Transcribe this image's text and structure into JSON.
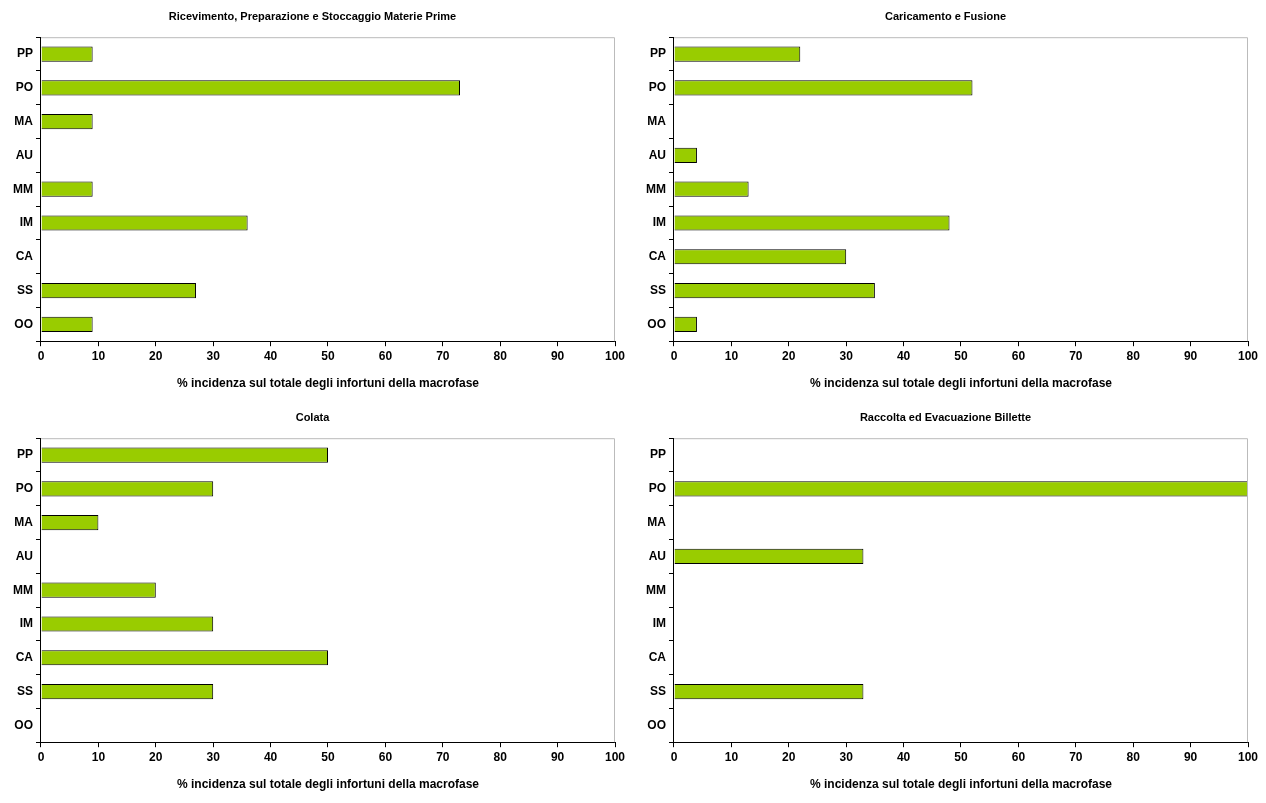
{
  "chart_data": [
    {
      "type": "bar",
      "orientation": "horizontal",
      "title": "Ricevimento, Preparazione e Stoccaggio Materie Prime",
      "xlabel": "% incidenza sul totale degli infortuni della macrofase",
      "categories": [
        "PP",
        "PO",
        "MA",
        "AU",
        "MM",
        "IM",
        "CA",
        "SS",
        "OO"
      ],
      "values": [
        9,
        73,
        9,
        0,
        9,
        36,
        0,
        27,
        9
      ],
      "color": "#99cc00",
      "xlim": [
        0,
        100
      ],
      "xticks": [
        0,
        10,
        20,
        30,
        40,
        50,
        60,
        70,
        80,
        90,
        100
      ]
    },
    {
      "type": "bar",
      "orientation": "horizontal",
      "title": "Caricamento e Fusione",
      "xlabel": "% incidenza sul totale degli infortuni della macrofase",
      "categories": [
        "PP",
        "PO",
        "MA",
        "AU",
        "MM",
        "IM",
        "CA",
        "SS",
        "OO"
      ],
      "values": [
        22,
        52,
        0,
        4,
        13,
        48,
        30,
        35,
        4
      ],
      "color": "#99cc00",
      "xlim": [
        0,
        100
      ],
      "xticks": [
        0,
        10,
        20,
        30,
        40,
        50,
        60,
        70,
        80,
        90,
        100
      ]
    },
    {
      "type": "bar",
      "orientation": "horizontal",
      "title": "Colata",
      "xlabel": "% incidenza sul totale degli infortuni della macrofase",
      "categories": [
        "PP",
        "PO",
        "MA",
        "AU",
        "MM",
        "IM",
        "CA",
        "SS",
        "OO"
      ],
      "values": [
        50,
        30,
        10,
        0,
        20,
        30,
        50,
        30,
        0
      ],
      "color": "#99cc00",
      "xlim": [
        0,
        100
      ],
      "xticks": [
        0,
        10,
        20,
        30,
        40,
        50,
        60,
        70,
        80,
        90,
        100
      ]
    },
    {
      "type": "bar",
      "orientation": "horizontal",
      "title": "Raccolta ed Evacuazione Billette",
      "xlabel": "% incidenza sul totale degli infortuni della macrofase",
      "categories": [
        "PP",
        "PO",
        "MA",
        "AU",
        "MM",
        "IM",
        "CA",
        "SS",
        "OO"
      ],
      "values": [
        0,
        100,
        0,
        33,
        0,
        0,
        0,
        33,
        0
      ],
      "color": "#99cc00",
      "xlim": [
        0,
        100
      ],
      "xticks": [
        0,
        10,
        20,
        30,
        40,
        50,
        60,
        70,
        80,
        90,
        100
      ]
    }
  ]
}
